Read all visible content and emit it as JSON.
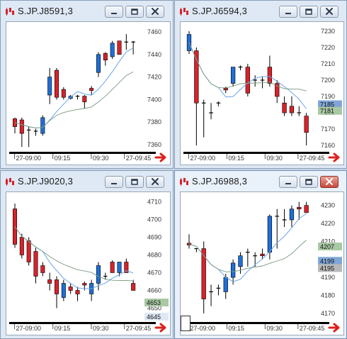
{
  "windows": [
    {
      "id": "w1",
      "title": "S.JP.J8591,3",
      "active": false,
      "y_ticks": [
        "7460",
        "7440",
        "7420",
        "7400",
        "7380",
        "7360"
      ],
      "y_range": [
        7355,
        7465
      ],
      "x_labels": [
        "27-09:00",
        "09:15",
        "09:30",
        "27-09:45"
      ],
      "price_tags": [],
      "candles": [
        {
          "o": 7376,
          "h": 7384,
          "l": 7370,
          "c": 7383,
          "up": false
        },
        {
          "o": 7382,
          "h": 7384,
          "l": 7358,
          "c": 7370,
          "up": false
        },
        {
          "o": 7372,
          "h": 7376,
          "l": 7358,
          "c": 7373,
          "up": false
        },
        {
          "o": 7372,
          "h": 7374,
          "l": 7368,
          "c": 7371,
          "up": false
        },
        {
          "o": 7370,
          "h": 7386,
          "l": 7368,
          "c": 7384,
          "up": true
        },
        {
          "o": 7420,
          "h": 7428,
          "l": 7396,
          "c": 7404,
          "up": true
        },
        {
          "o": 7426,
          "h": 7428,
          "l": 7400,
          "c": 7402,
          "up": false
        },
        {
          "o": 7409,
          "h": 7411,
          "l": 7400,
          "c": 7402,
          "up": false
        },
        {
          "o": 7403,
          "h": 7404,
          "l": 7400,
          "c": 7401,
          "up": true
        },
        {
          "o": 7402,
          "h": 7404,
          "l": 7400,
          "c": 7403,
          "up": false
        },
        {
          "o": 7403,
          "h": 7404,
          "l": 7392,
          "c": 7398,
          "up": false
        },
        {
          "o": 7408,
          "h": 7412,
          "l": 7404,
          "c": 7410,
          "up": false
        },
        {
          "o": 7424,
          "h": 7442,
          "l": 7420,
          "c": 7440,
          "up": true
        },
        {
          "o": 7435,
          "h": 7442,
          "l": 7430,
          "c": 7441,
          "up": false
        },
        {
          "o": 7450,
          "h": 7452,
          "l": 7436,
          "c": 7438,
          "up": true
        },
        {
          "o": 7452,
          "h": 7452,
          "l": 7440,
          "c": 7440,
          "up": false
        },
        {
          "o": 7451,
          "h": 7458,
          "l": 7444,
          "c": 7450,
          "up": false
        },
        {
          "o": 7451,
          "h": 7452,
          "l": 7440,
          "c": 7450,
          "up": false
        }
      ]
    },
    {
      "id": "w2",
      "title": "S.JP.J6594,3",
      "active": false,
      "y_ticks": [
        "7230",
        "7220",
        "7210",
        "7200",
        "7190",
        "7180",
        "7170",
        "7160"
      ],
      "y_range": [
        7157,
        7233
      ],
      "x_labels": [
        "27-09:00",
        "09:15",
        "09:30",
        "27-09:45"
      ],
      "price_tags": [
        {
          "label": "7185",
          "value": 7185,
          "color": "#7fa6d6"
        },
        {
          "label": "7181",
          "value": 7181,
          "color": "#a9c9a4"
        }
      ],
      "candles": [
        {
          "o": 7228,
          "h": 7230,
          "l": 7216,
          "c": 7218,
          "up": true
        },
        {
          "o": 7218,
          "h": 7220,
          "l": 7160,
          "c": 7186,
          "up": false
        },
        {
          "o": 7186,
          "h": 7188,
          "l": 7165,
          "c": 7186,
          "up": false
        },
        {
          "o": 7180,
          "h": 7186,
          "l": 7176,
          "c": 7180,
          "up": false
        },
        {
          "o": 7186,
          "h": 7187,
          "l": 7184,
          "c": 7186,
          "up": false
        },
        {
          "o": 7194,
          "h": 7196,
          "l": 7192,
          "c": 7195,
          "up": false
        },
        {
          "o": 7198,
          "h": 7208,
          "l": 7196,
          "c": 7208,
          "up": true
        },
        {
          "o": 7208,
          "h": 7209,
          "l": 7206,
          "c": 7208,
          "up": false
        },
        {
          "o": 7208,
          "h": 7210,
          "l": 7190,
          "c": 7192,
          "up": false
        },
        {
          "o": 7200,
          "h": 7203,
          "l": 7196,
          "c": 7200,
          "up": false
        },
        {
          "o": 7200,
          "h": 7202,
          "l": 7195,
          "c": 7200,
          "up": false
        },
        {
          "o": 7208,
          "h": 7215,
          "l": 7196,
          "c": 7198,
          "up": false
        },
        {
          "o": 7198,
          "h": 7200,
          "l": 7186,
          "c": 7190,
          "up": false
        },
        {
          "o": 7186,
          "h": 7190,
          "l": 7178,
          "c": 7180,
          "up": false
        },
        {
          "o": 7184,
          "h": 7190,
          "l": 7178,
          "c": 7180,
          "up": false
        },
        {
          "o": 7180,
          "h": 7184,
          "l": 7178,
          "c": 7180,
          "up": false
        },
        {
          "o": 7178,
          "h": 7180,
          "l": 7160,
          "c": 7168,
          "up": false
        }
      ]
    },
    {
      "id": "w3",
      "title": "S.JP.J9020,3",
      "active": false,
      "y_ticks": [
        "4710",
        "4700",
        "4690",
        "4680",
        "4670",
        "4660",
        "4650"
      ],
      "y_range": [
        4643,
        4713
      ],
      "x_labels": [
        "27-09:00",
        "09:15",
        "09:30",
        "27-09:45"
      ],
      "price_tags": [
        {
          "label": "4653",
          "value": 4653,
          "color": "#a9c9a4"
        },
        {
          "label": "4645",
          "value": 4645,
          "color": "#dfe9f5"
        }
      ],
      "candles": [
        {
          "o": 4706,
          "h": 4709,
          "l": 4684,
          "c": 4686,
          "up": false
        },
        {
          "o": 4690,
          "h": 4692,
          "l": 4678,
          "c": 4680,
          "up": false
        },
        {
          "o": 4688,
          "h": 4690,
          "l": 4674,
          "c": 4676,
          "up": false
        },
        {
          "o": 4682,
          "h": 4684,
          "l": 4664,
          "c": 4668,
          "up": false
        },
        {
          "o": 4674,
          "h": 4676,
          "l": 4668,
          "c": 4670,
          "up": false
        },
        {
          "o": 4666,
          "h": 4670,
          "l": 4660,
          "c": 4664,
          "up": false
        },
        {
          "o": 4666,
          "h": 4668,
          "l": 4650,
          "c": 4658,
          "up": false
        },
        {
          "o": 4656,
          "h": 4666,
          "l": 4654,
          "c": 4664,
          "up": true
        },
        {
          "o": 4660,
          "h": 4664,
          "l": 4658,
          "c": 4662,
          "up": false
        },
        {
          "o": 4658,
          "h": 4662,
          "l": 4654,
          "c": 4660,
          "up": false
        },
        {
          "o": 4664,
          "h": 4665,
          "l": 4660,
          "c": 4663,
          "up": false
        },
        {
          "o": 4658,
          "h": 4666,
          "l": 4654,
          "c": 4664,
          "up": true
        },
        {
          "o": 4664,
          "h": 4676,
          "l": 4660,
          "c": 4674,
          "up": true
        },
        {
          "o": 4668,
          "h": 4670,
          "l": 4666,
          "c": 4668,
          "up": false
        },
        {
          "o": 4676,
          "h": 4677,
          "l": 4670,
          "c": 4670,
          "up": false
        },
        {
          "o": 4670,
          "h": 4676,
          "l": 4668,
          "c": 4676,
          "up": true
        },
        {
          "o": 4676,
          "h": 4678,
          "l": 4670,
          "c": 4670,
          "up": false
        },
        {
          "o": 4664,
          "h": 4666,
          "l": 4660,
          "c": 4660,
          "up": false
        }
      ]
    },
    {
      "id": "w4",
      "title": "S.JP.J6988,3",
      "active": true,
      "y_ticks": [
        "4230",
        "4220",
        "4210",
        "4200",
        "4190",
        "4180",
        "4170"
      ],
      "y_range": [
        4166,
        4235
      ],
      "x_labels": [
        "27-09:00",
        "09:15",
        "09:30",
        "27-09:45"
      ],
      "price_tags": [
        {
          "label": "4207",
          "value": 4207,
          "color": "#a9c9a4"
        },
        {
          "label": "4199",
          "value": 4199,
          "color": "#7fa6d6"
        },
        {
          "label": "4195",
          "value": 4195,
          "color": "#b8b8b8"
        }
      ],
      "candles": [
        {
          "o": 4209,
          "h": 4214,
          "l": 4206,
          "c": 4208,
          "up": false
        },
        {
          "o": 4206,
          "h": 4206,
          "l": 4204,
          "c": 4206,
          "up": false
        },
        {
          "o": 4206,
          "h": 4210,
          "l": 4170,
          "c": 4178,
          "up": false
        },
        {
          "o": 4182,
          "h": 4186,
          "l": 4174,
          "c": 4182,
          "up": false
        },
        {
          "o": 4184,
          "h": 4186,
          "l": 4180,
          "c": 4184,
          "up": false
        },
        {
          "o": 4182,
          "h": 4192,
          "l": 4178,
          "c": 4190,
          "up": true
        },
        {
          "o": 4190,
          "h": 4200,
          "l": 4186,
          "c": 4198,
          "up": true
        },
        {
          "o": 4196,
          "h": 4204,
          "l": 4192,
          "c": 4202,
          "up": true
        },
        {
          "o": 4204,
          "h": 4206,
          "l": 4196,
          "c": 4204,
          "up": false
        },
        {
          "o": 4202,
          "h": 4204,
          "l": 4196,
          "c": 4202,
          "up": false
        },
        {
          "o": 4202,
          "h": 4206,
          "l": 4200,
          "c": 4203,
          "up": false
        },
        {
          "o": 4204,
          "h": 4225,
          "l": 4200,
          "c": 4224,
          "up": true
        },
        {
          "o": 4224,
          "h": 4228,
          "l": 4206,
          "c": 4224,
          "up": false
        },
        {
          "o": 4222,
          "h": 4228,
          "l": 4218,
          "c": 4222,
          "up": false
        },
        {
          "o": 4222,
          "h": 4230,
          "l": 4218,
          "c": 4228,
          "up": true
        },
        {
          "o": 4228,
          "h": 4232,
          "l": 4222,
          "c": 4229,
          "up": false
        },
        {
          "o": 4230,
          "h": 4232,
          "l": 4226,
          "c": 4226,
          "up": false
        }
      ]
    }
  ],
  "colors": {
    "up": "#1f6fd6",
    "down": "#d8222a",
    "ma_fast": "#6aa6e8",
    "ma_slow": "#7a9a80",
    "grid_label": "#333333",
    "nav_arrow": "#e0201c"
  }
}
